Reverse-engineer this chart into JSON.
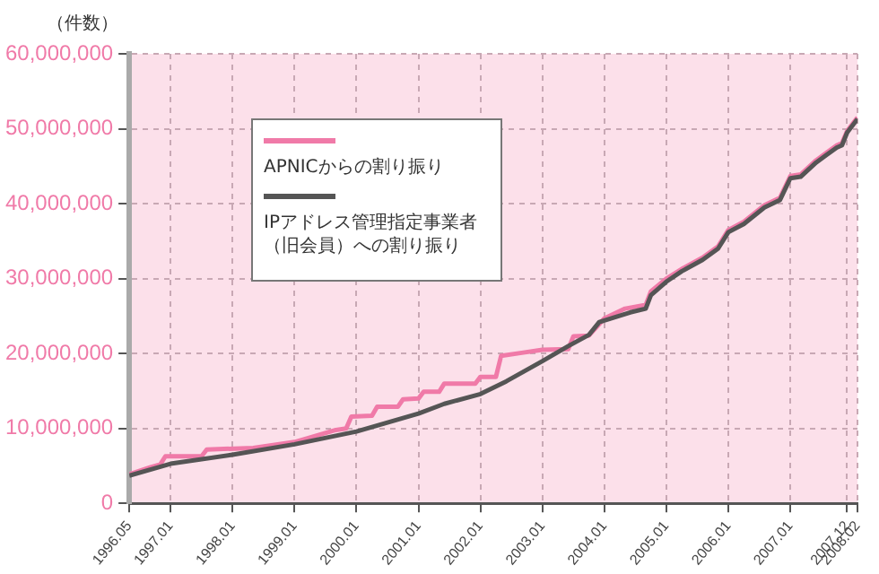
{
  "chart_data": {
    "type": "line",
    "ylabel": "（件数）",
    "xlim": [
      "1996-05",
      "2008-02"
    ],
    "xticks": [
      {
        "value": "1996-05",
        "label": "1996.05"
      },
      {
        "value": "1997-01",
        "label": "1997.01"
      },
      {
        "value": "1998-01",
        "label": "1998.01"
      },
      {
        "value": "1999-01",
        "label": "1999.01"
      },
      {
        "value": "2000-01",
        "label": "2000.01"
      },
      {
        "value": "2001-01",
        "label": "2001.01"
      },
      {
        "value": "2002-01",
        "label": "2002.01"
      },
      {
        "value": "2003-01",
        "label": "2003.01"
      },
      {
        "value": "2004-01",
        "label": "2004.01"
      },
      {
        "value": "2005-01",
        "label": "2005.01"
      },
      {
        "value": "2006-01",
        "label": "2006.01"
      },
      {
        "value": "2007-01",
        "label": "2007.01"
      },
      {
        "value": "2007-12",
        "label": "2007.12"
      },
      {
        "value": "2008-02",
        "label": "2008.02"
      }
    ],
    "ylim": [
      0,
      60000000
    ],
    "yticks": [
      0,
      {
        "value": 10000000,
        "label": "10,000,000"
      },
      {
        "value": 20000000,
        "label": "20,000,000"
      },
      {
        "value": 30000000,
        "label": "30,000,000"
      },
      {
        "value": 40000000,
        "label": "40,000,000"
      },
      {
        "value": 50000000,
        "label": "50,000,000"
      },
      {
        "value": 60000000,
        "label": "60,000,000"
      }
    ],
    "grid": true,
    "legend": "top left",
    "marker": "none",
    "line_style": "solid",
    "series": [
      {
        "name": "APNICからの割り振り",
        "color": "#f07aa8",
        "x": [
          "1996-05",
          "1996-09",
          "1996-11",
          "1996-12",
          "1997-07",
          "1997-08",
          "1998-05",
          "1999-01",
          "1999-05",
          "1999-09",
          "1999-11",
          "1999-12",
          "2000-04",
          "2000-05",
          "2000-09",
          "2000-10",
          "2001-01",
          "2001-02",
          "2001-05",
          "2001-06",
          "2001-12",
          "2002-01",
          "2002-04",
          "2002-05",
          "2002-09",
          "2003-01",
          "2003-06",
          "2003-07",
          "2003-10",
          "2004-01",
          "2004-05",
          "2004-09",
          "2004-10",
          "2005-01",
          "2005-04",
          "2005-08",
          "2005-11",
          "2006-01",
          "2006-04",
          "2006-08",
          "2006-11",
          "2007-01",
          "2007-03",
          "2007-06",
          "2007-08",
          "2007-10",
          "2007-11",
          "2007-12",
          "2008-02"
        ],
        "values": [
          3900000,
          4800000,
          5200000,
          6300000,
          6300000,
          7200000,
          7400000,
          8200000,
          9000000,
          9800000,
          10000000,
          11600000,
          11700000,
          12900000,
          12900000,
          13900000,
          14000000,
          14900000,
          14900000,
          16000000,
          16000000,
          16900000,
          16900000,
          19700000,
          20100000,
          20500000,
          20600000,
          22300000,
          22400000,
          24700000,
          26000000,
          26500000,
          28300000,
          30000000,
          31300000,
          32800000,
          34300000,
          36500000,
          37600000,
          39800000,
          40800000,
          43700000,
          43900000,
          45800000,
          46800000,
          47800000,
          48100000,
          49700000,
          51500000
        ]
      },
      {
        "name": "IPアドレス管理指定事業者（旧会員）への割り振り",
        "color": "#555555",
        "x": [
          "1996-05",
          "1997-01",
          "1998-01",
          "1999-01",
          "2000-01",
          "2001-01",
          "2001-06",
          "2002-01",
          "2002-06",
          "2003-01",
          "2003-06",
          "2003-10",
          "2003-12",
          "2004-06",
          "2004-09",
          "2004-10",
          "2005-01",
          "2005-04",
          "2005-08",
          "2005-11",
          "2006-01",
          "2006-04",
          "2006-08",
          "2006-11",
          "2007-01",
          "2007-03",
          "2007-06",
          "2007-08",
          "2007-10",
          "2007-11",
          "2007-12",
          "2008-02"
        ],
        "values": [
          3700000,
          5300000,
          6500000,
          7900000,
          9600000,
          12000000,
          13300000,
          14600000,
          16300000,
          19000000,
          21000000,
          22500000,
          24200000,
          25500000,
          26000000,
          27800000,
          29600000,
          31000000,
          32500000,
          34000000,
          36200000,
          37300000,
          39500000,
          40500000,
          43400000,
          43600000,
          45500000,
          46500000,
          47500000,
          47800000,
          49500000,
          51300000
        ]
      }
    ]
  }
}
